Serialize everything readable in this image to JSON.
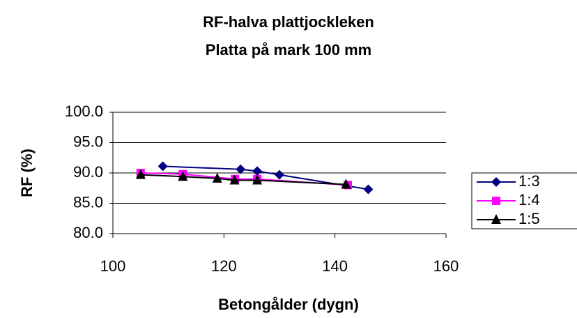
{
  "chart_data": {
    "type": "scatter",
    "title": [
      "RF-halva plattjockleken",
      "Platta på mark 100 mm"
    ],
    "xlabel": "Betongålder (dygn)",
    "ylabel": "RF (%)",
    "xlim": [
      100,
      160
    ],
    "xticks": [
      100,
      120,
      140,
      160
    ],
    "ylim": [
      80,
      100
    ],
    "yticks": [
      {
        "value": 80,
        "label": "80.0"
      },
      {
        "value": 85,
        "label": "85.0"
      },
      {
        "value": 90,
        "label": "90.0"
      },
      {
        "value": 95,
        "label": "95.0"
      },
      {
        "value": 100,
        "label": "100.0"
      }
    ],
    "grid": true,
    "legend": "right",
    "series": [
      {
        "name": "1:3",
        "color": "#000080",
        "marker": "diamond",
        "x": [
          109,
          123,
          126,
          130,
          146
        ],
        "values": [
          91.1,
          90.6,
          90.3,
          89.7,
          87.3
        ]
      },
      {
        "name": "1:4",
        "color": "#ff00ff",
        "marker": "square",
        "x": [
          105,
          112.6,
          122,
          126,
          142.3
        ],
        "values": [
          90.0,
          89.8,
          89.0,
          89.0,
          88.0
        ]
      },
      {
        "name": "1:5",
        "color": "#000000",
        "marker": "triangle",
        "x": [
          105,
          112.6,
          118.8,
          121.9,
          126,
          142
        ],
        "values": [
          89.7,
          89.4,
          89.1,
          88.8,
          88.8,
          88.1
        ]
      }
    ]
  }
}
